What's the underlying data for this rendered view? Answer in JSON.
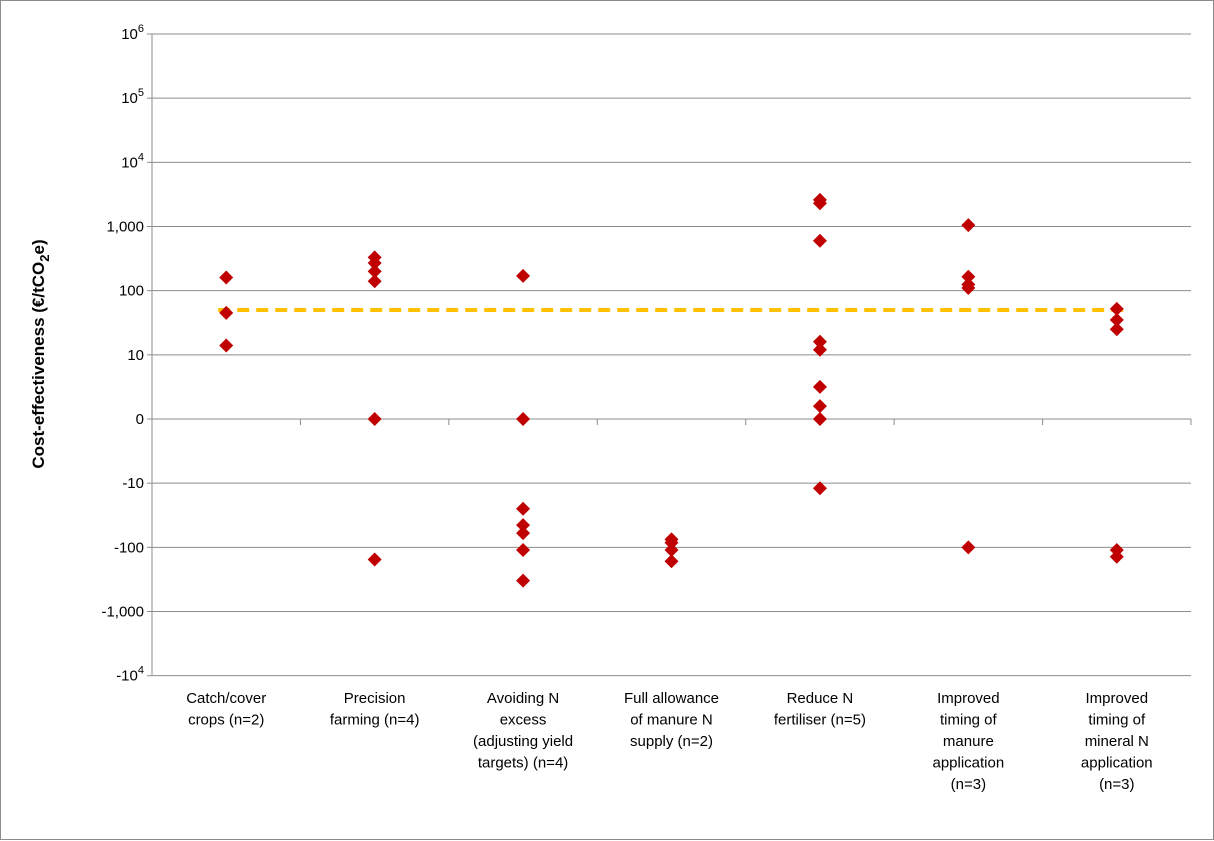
{
  "chart_data": {
    "type": "scatter",
    "ylabel_parts": [
      "Cost-effectiveness (€/tCO",
      "2",
      "e)"
    ],
    "yscale": "symlog",
    "y_ticks": [
      {
        "value": 1000000,
        "base": "10",
        "exp": "6"
      },
      {
        "value": 100000,
        "base": "10",
        "exp": "5"
      },
      {
        "value": 10000,
        "base": "10",
        "exp": "4"
      },
      {
        "value": 1000,
        "label": "1,000"
      },
      {
        "value": 100,
        "label": "100"
      },
      {
        "value": 10,
        "label": "10"
      },
      {
        "value": 0,
        "label": "0"
      },
      {
        "value": -10,
        "label": "-10"
      },
      {
        "value": -100,
        "label": "-100"
      },
      {
        "value": -1000,
        "label": "-1,000"
      },
      {
        "value": -10000,
        "base": "-10",
        "exp": "4"
      }
    ],
    "categories": [
      [
        "Catch/cover",
        "crops (n=2)"
      ],
      [
        "Precision",
        "farming (n=4)"
      ],
      [
        "Avoiding N",
        "excess",
        "(adjusting yield",
        "targets) (n=4)"
      ],
      [
        "Full allowance",
        "of manure N",
        "supply (n=2)"
      ],
      [
        "Reduce N",
        "fertiliser (n=5)"
      ],
      [
        "Improved",
        "timing of",
        "manure",
        "application",
        "(n=3)"
      ],
      [
        "Improved",
        "timing of",
        "mineral N",
        "application",
        "(n=3)"
      ]
    ],
    "points": [
      [
        160,
        45,
        14
      ],
      [
        330,
        270,
        200,
        140,
        0,
        -155
      ],
      [
        170,
        0,
        -25,
        -45,
        -60,
        -110,
        -330
      ],
      [
        -75,
        -85,
        -110,
        -165
      ],
      [
        2600,
        2300,
        600,
        16,
        12,
        5,
        2,
        0,
        -12
      ],
      [
        1050,
        165,
        125,
        110,
        -100
      ],
      [
        52,
        35,
        25,
        -110,
        -140
      ]
    ],
    "reference_line": 50,
    "grid": true,
    "legend": "none",
    "colors": {
      "marker": "#c00000",
      "reference": "#ffc000",
      "grid": "#8c8c8c"
    }
  }
}
